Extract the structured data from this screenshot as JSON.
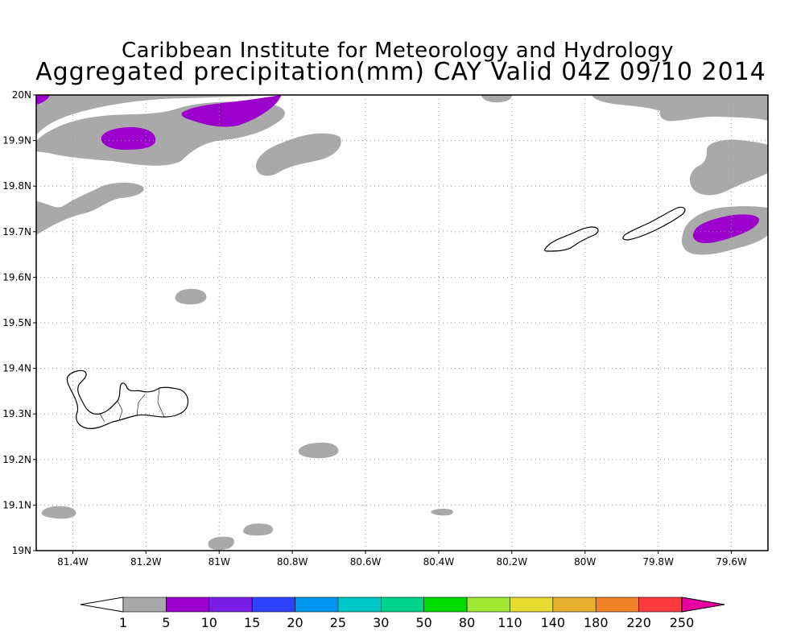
{
  "title": {
    "line1": "Caribbean Institute for Meteorology and Hydrology",
    "line2": "Aggregated precipitation(mm) CAY Valid 04Z 09/10 2014"
  },
  "map": {
    "lon_range": [
      -81.5,
      -79.5
    ],
    "lat_range": [
      19.0,
      20.0
    ],
    "lat_ticks": [
      {
        "value": 20.0,
        "label": "20N"
      },
      {
        "value": 19.9,
        "label": "19.9N"
      },
      {
        "value": 19.8,
        "label": "19.8N"
      },
      {
        "value": 19.7,
        "label": "19.7N"
      },
      {
        "value": 19.6,
        "label": "19.6N"
      },
      {
        "value": 19.5,
        "label": "19.5N"
      },
      {
        "value": 19.4,
        "label": "19.4N"
      },
      {
        "value": 19.3,
        "label": "19.3N"
      },
      {
        "value": 19.2,
        "label": "19.2N"
      },
      {
        "value": 19.1,
        "label": "19.1N"
      },
      {
        "value": 19.0,
        "label": "19N"
      }
    ],
    "lon_ticks": [
      {
        "value": -81.4,
        "label": "81.4W"
      },
      {
        "value": -81.2,
        "label": "81.2W"
      },
      {
        "value": -81.0,
        "label": "81W"
      },
      {
        "value": -80.8,
        "label": "80.8W"
      },
      {
        "value": -80.6,
        "label": "80.6W"
      },
      {
        "value": -80.4,
        "label": "80.4W"
      },
      {
        "value": -80.2,
        "label": "80.2W"
      },
      {
        "value": -80.0,
        "label": "80W"
      },
      {
        "value": -79.8,
        "label": "79.8W"
      },
      {
        "value": -79.6,
        "label": "79.6W"
      }
    ],
    "grid": true,
    "features": [
      "Grand Cayman",
      "Little Cayman",
      "Cayman Brac"
    ]
  },
  "colorbar": {
    "labels": [
      "1",
      "5",
      "10",
      "15",
      "20",
      "25",
      "30",
      "50",
      "80",
      "110",
      "140",
      "180",
      "220",
      "250"
    ],
    "colors": [
      "#ffffff",
      "#a9a9a9",
      "#9b00cd",
      "#7a1ee6",
      "#2e42ff",
      "#0096f0",
      "#00c8c8",
      "#00d28c",
      "#00dc00",
      "#a0e632",
      "#e6dc32",
      "#e6af2d",
      "#f08228",
      "#fa3c3c",
      "#e600a0"
    ]
  },
  "colors": {
    "low_precip": "#a9a9a9",
    "mid_precip": "#9b00cd",
    "grid": "#9a9a9a"
  }
}
